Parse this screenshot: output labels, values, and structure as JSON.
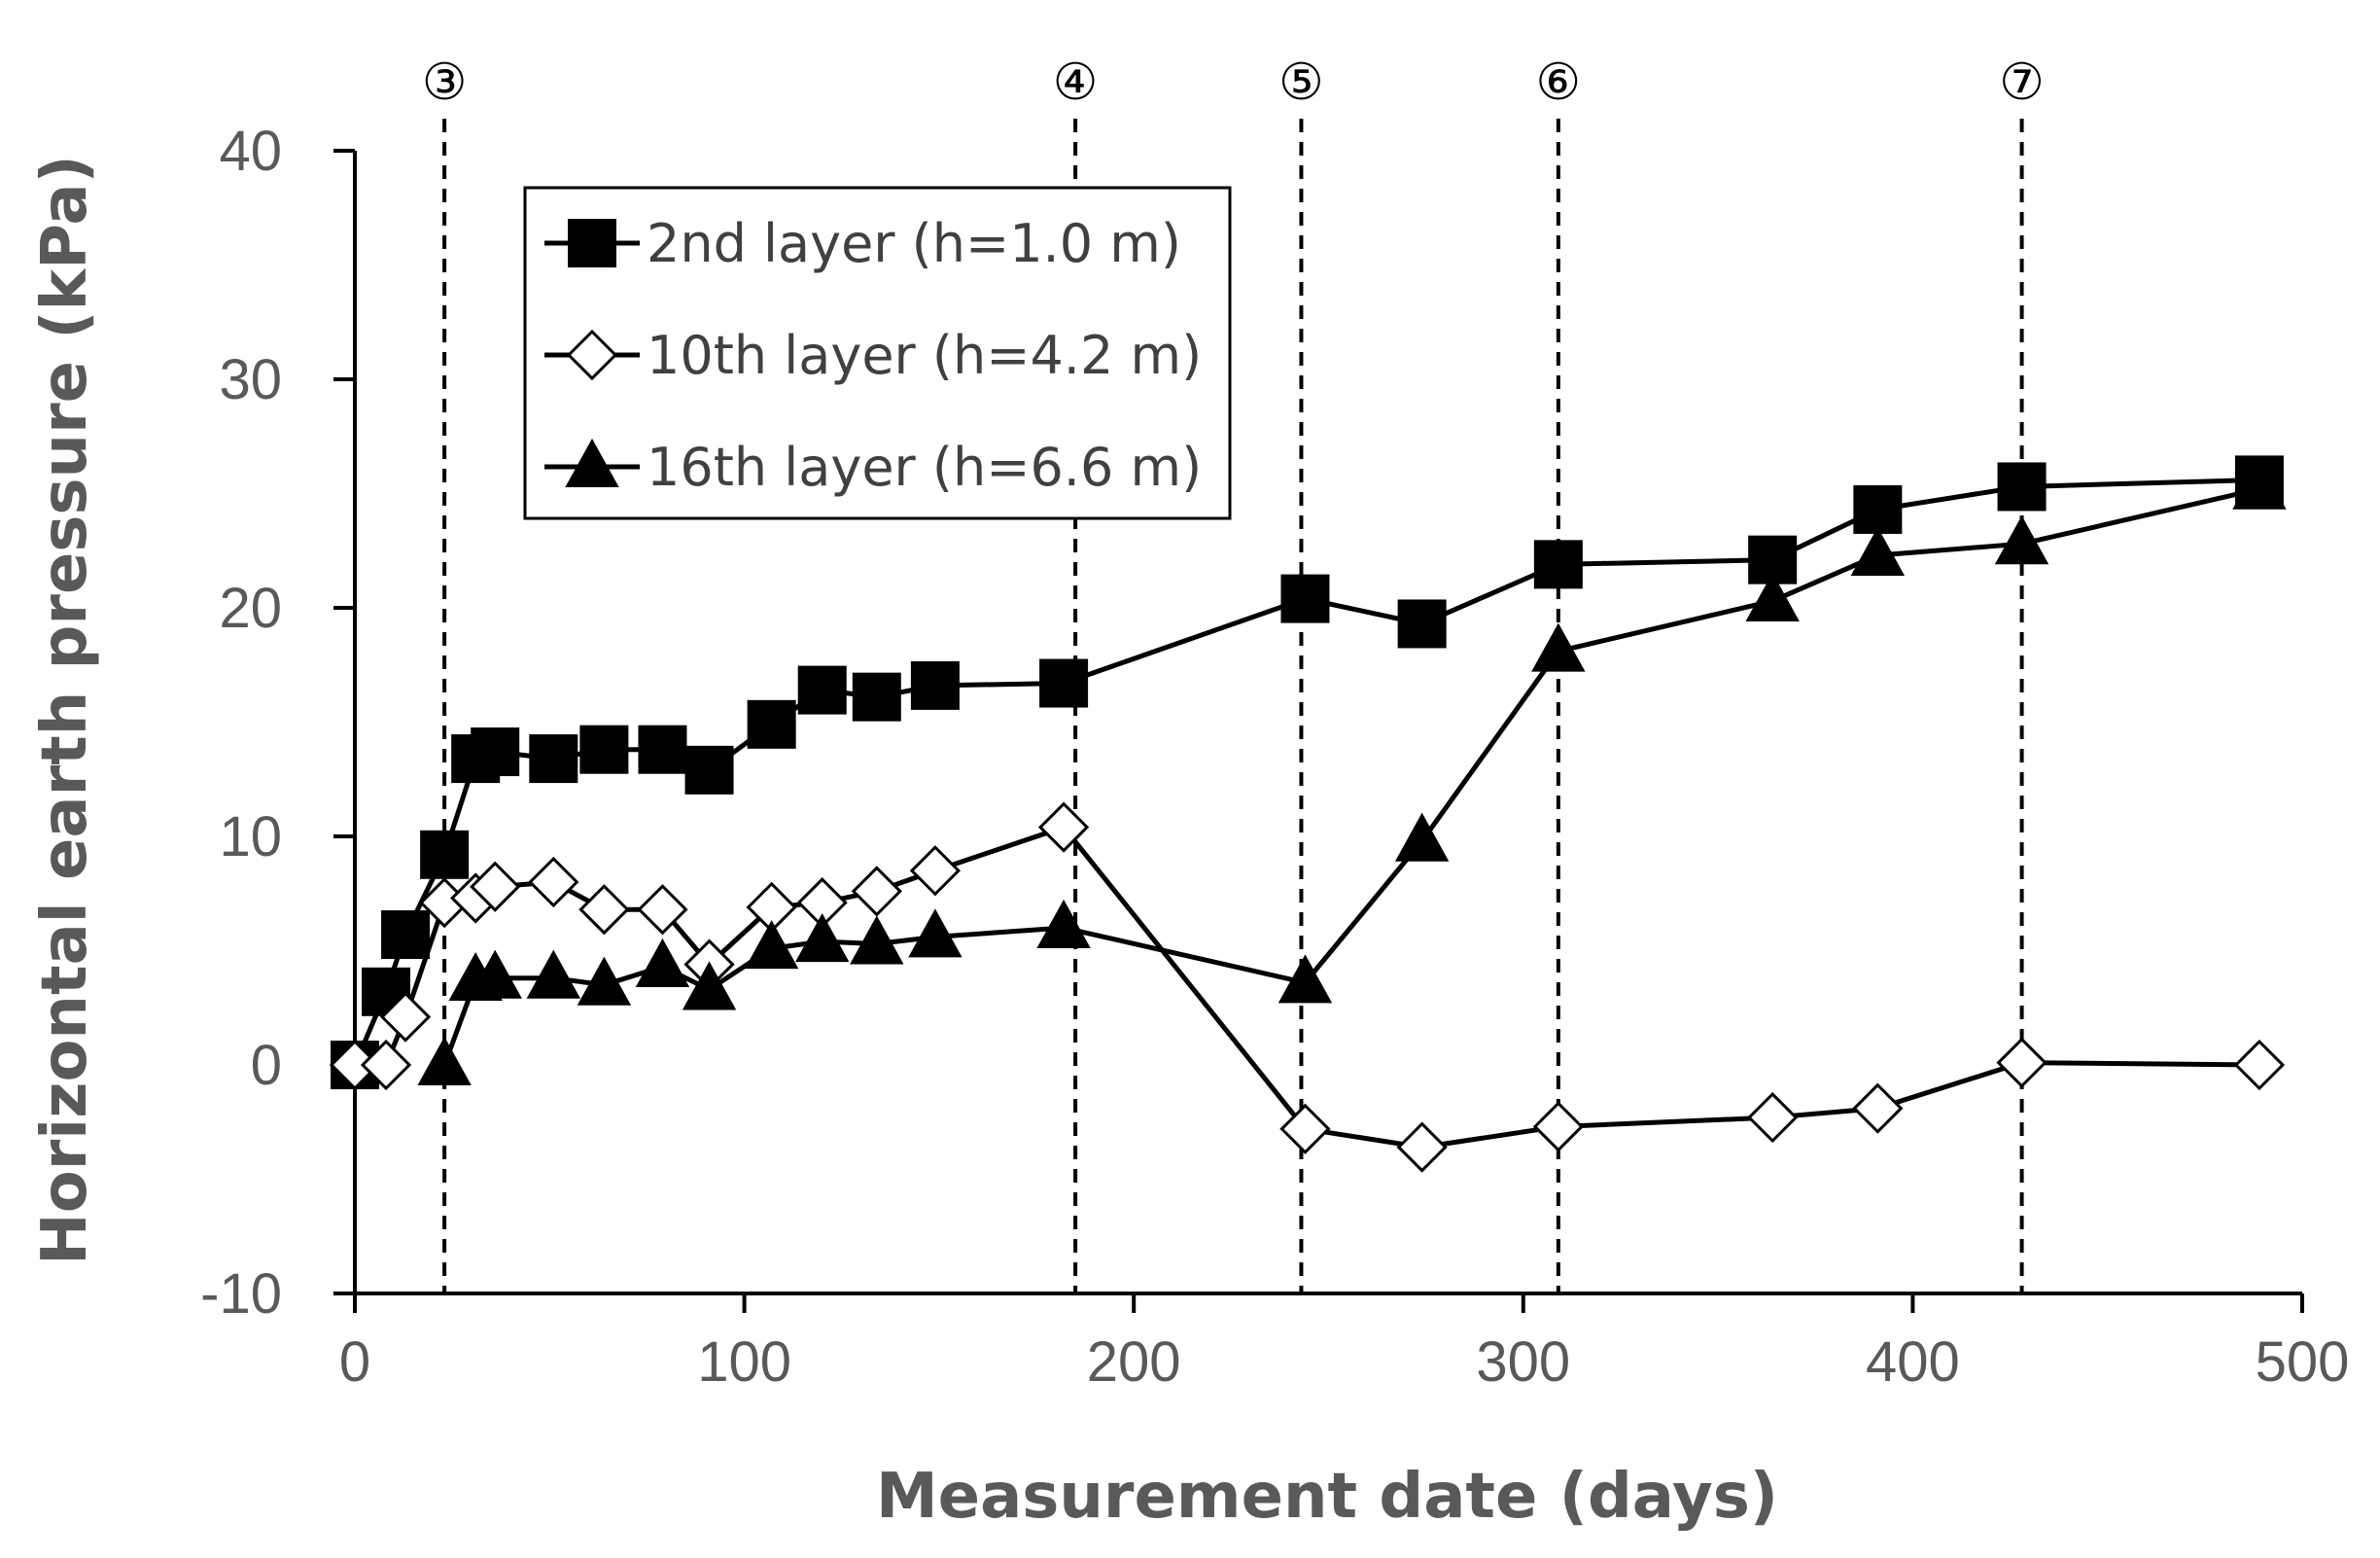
{
  "chart_data": {
    "type": "line",
    "title": "",
    "xlabel": "Measurement date (days)",
    "ylabel": "Horizontal earth pressure (kPa)",
    "xlim": [
      0,
      500
    ],
    "ylim": [
      -10,
      40
    ],
    "xticks": [
      0,
      100,
      200,
      300,
      400,
      500
    ],
    "yticks": [
      -10,
      0,
      10,
      20,
      30,
      40
    ],
    "grid": false,
    "legend_position": "top-left",
    "stage_markers": [
      {
        "label": "③",
        "x": 23
      },
      {
        "label": "④",
        "x": 185
      },
      {
        "label": "⑤",
        "x": 243
      },
      {
        "label": "⑥",
        "x": 309
      },
      {
        "label": "⑦",
        "x": 428
      }
    ],
    "series": [
      {
        "name": "2nd layer (h=1.0 m)",
        "marker": "square-filled",
        "points": [
          [
            0,
            0
          ],
          [
            8,
            3.2
          ],
          [
            13,
            5.7
          ],
          [
            23,
            9.2
          ],
          [
            31,
            13.4
          ],
          [
            36,
            13.7
          ],
          [
            51,
            13.4
          ],
          [
            64,
            13.8
          ],
          [
            79,
            13.8
          ],
          [
            91,
            12.9
          ],
          [
            107,
            14.9
          ],
          [
            120,
            16.4
          ],
          [
            134,
            16.1
          ],
          [
            149,
            16.6
          ],
          [
            182,
            16.7
          ],
          [
            244,
            20.4
          ],
          [
            274,
            19.3
          ],
          [
            309,
            21.9
          ],
          [
            364,
            22.1
          ],
          [
            391,
            24.3
          ],
          [
            428,
            25.3
          ],
          [
            489,
            25.6
          ]
        ]
      },
      {
        "name": "10th layer (h=4.2 m)",
        "marker": "diamond-open",
        "points": [
          [
            0,
            0
          ],
          [
            8,
            0
          ],
          [
            13,
            2.1
          ],
          [
            23,
            7.1
          ],
          [
            31,
            7.3
          ],
          [
            36,
            7.8
          ],
          [
            51,
            8.0
          ],
          [
            64,
            6.8
          ],
          [
            79,
            6.8
          ],
          [
            91,
            4.4
          ],
          [
            107,
            6.9
          ],
          [
            120,
            7.1
          ],
          [
            134,
            7.6
          ],
          [
            149,
            8.5
          ],
          [
            182,
            10.4
          ],
          [
            244,
            -2.8
          ],
          [
            274,
            -3.6
          ],
          [
            309,
            -2.7
          ],
          [
            364,
            -2.3
          ],
          [
            391,
            -1.9
          ],
          [
            428,
            0.1
          ],
          [
            489,
            0
          ]
        ]
      },
      {
        "name": "16th layer (h=6.6 m)",
        "marker": "triangle-filled",
        "points": [
          [
            23,
            0
          ],
          [
            31,
            3.7
          ],
          [
            36,
            3.8
          ],
          [
            51,
            3.8
          ],
          [
            64,
            3.5
          ],
          [
            79,
            4.3
          ],
          [
            91,
            3.3
          ],
          [
            107,
            5.1
          ],
          [
            120,
            5.4
          ],
          [
            134,
            5.3
          ],
          [
            149,
            5.6
          ],
          [
            182,
            6.0
          ],
          [
            244,
            3.6
          ],
          [
            274,
            9.8
          ],
          [
            309,
            18.1
          ],
          [
            364,
            20.3
          ],
          [
            391,
            22.3
          ],
          [
            428,
            22.8
          ],
          [
            489,
            25.2
          ]
        ]
      }
    ]
  }
}
